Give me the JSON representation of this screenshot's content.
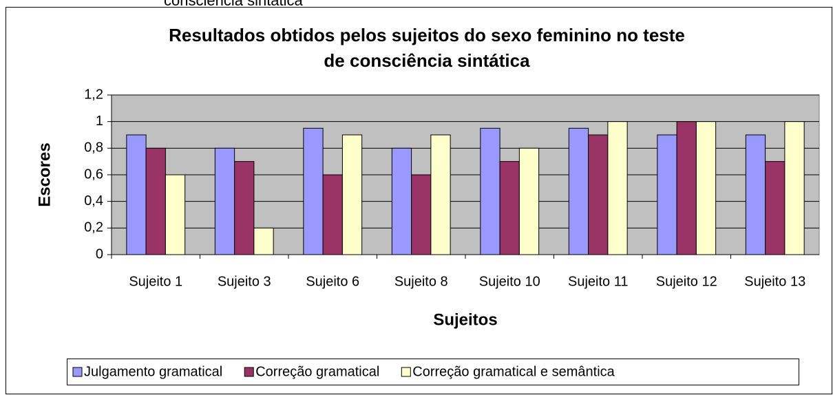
{
  "header_text": "consciência sintática",
  "chart_data": {
    "type": "bar",
    "title": [
      "Resultados obtidos pelos sujeitos do sexo feminino no teste",
      "de consciência sintática"
    ],
    "x_label": "Sujeitos",
    "y_label": "Escores",
    "categories": [
      "Sujeito 1",
      "Sujeito 3",
      "Sujeito 6",
      "Sujeito 8",
      "Sujeito 10",
      "Sujeito 11",
      "Sujeito 12",
      "Sujeito 13"
    ],
    "series": [
      {
        "name": "Julgamento gramatical",
        "color": "#9999ff",
        "values": [
          0.9,
          0.8,
          0.95,
          0.8,
          0.95,
          0.95,
          0.9,
          0.9
        ]
      },
      {
        "name": "Correção gramatical",
        "color": "#993366",
        "values": [
          0.8,
          0.7,
          0.6,
          0.6,
          0.7,
          0.9,
          1,
          0.7
        ]
      },
      {
        "name": "Correção gramatical e semântica",
        "color": "#ffffcc",
        "values": [
          0.6,
          0.2,
          0.9,
          0.9,
          0.8,
          1,
          1,
          1
        ]
      }
    ],
    "ylim": [
      0,
      1.2
    ],
    "yticks": [
      0,
      {
        "value": 0.2,
        "label": "0,2"
      },
      {
        "value": 0.4,
        "label": "0,4"
      },
      {
        "value": 0.6,
        "label": "0,6"
      },
      {
        "value": 0.8,
        "label": "0,8"
      },
      1,
      {
        "value": 1.2,
        "label": "1,2"
      }
    ],
    "grid": true,
    "legend": "bottom",
    "plot_background": "#c0c0c0"
  }
}
